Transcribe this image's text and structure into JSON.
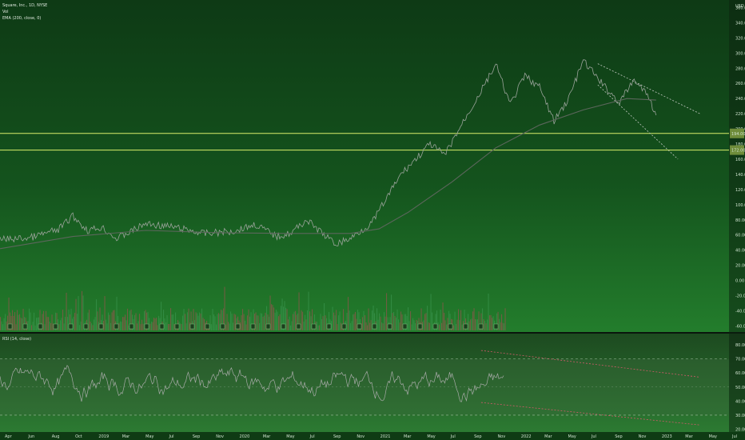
{
  "header": {
    "symbol_line": "Square, Inc., 1D, NYSE",
    "volume_label": "Vol",
    "ema_label": "EMA (200, close, 0)",
    "currency": "USD"
  },
  "rsi_header": "RSI (14, close)",
  "colors": {
    "price_line": "#9aa39a",
    "ema_line": "#5c665c",
    "support_line": "#d9ef6a",
    "trend_line": "#c0c7c0",
    "rsi_trend": "#d05a6a",
    "volume_up": "#3f9a55",
    "volume_down": "#b04a55",
    "panel_top": "#0f3a16",
    "panel_bottom": "#1f7a2a"
  },
  "chart_data": [
    {
      "type": "line",
      "title": "Square, Inc., 1D, NYSE",
      "x_ticks": [
        "Apr",
        "Jun",
        "Aug",
        "Oct",
        "2019",
        "Mar",
        "May",
        "Jul",
        "Sep",
        "Nov",
        "2020",
        "Mar",
        "May",
        "Jul",
        "Sep",
        "Nov",
        "2021",
        "Mar",
        "May",
        "Jul",
        "Sep",
        "Nov",
        "2022",
        "Mar",
        "May",
        "Jul",
        "Sep",
        "Nov",
        "2023",
        "Mar",
        "May",
        "Jul"
      ],
      "y_ticks": [
        -60,
        -40,
        -20,
        0,
        20,
        40,
        60,
        80,
        100,
        120,
        140,
        160,
        180,
        200,
        220,
        240,
        260,
        280,
        300,
        320,
        340,
        360
      ],
      "y_tick_labels": [
        "-60.00",
        "-40.00",
        "-20.00",
        "0.00",
        "20.00",
        "40.00",
        "60.00",
        "80.00",
        "100.00",
        "120.00",
        "140.00",
        "160.00",
        "180.00",
        "200.00",
        "220.00",
        "240.00",
        "260.00",
        "280.00",
        "300.00",
        "320.00",
        "340.00",
        "360.00"
      ],
      "ylim": [
        -68,
        370
      ],
      "price_series": {
        "name": "Price",
        "points": [
          [
            0,
            54
          ],
          [
            4,
            56
          ],
          [
            8,
            67
          ],
          [
            10,
            85
          ],
          [
            12,
            66
          ],
          [
            14,
            70
          ],
          [
            16,
            55
          ],
          [
            20,
            75
          ],
          [
            24,
            70
          ],
          [
            28,
            62
          ],
          [
            32,
            65
          ],
          [
            35,
            74
          ],
          [
            38,
            58
          ],
          [
            40,
            63
          ],
          [
            42,
            80
          ],
          [
            46,
            48
          ],
          [
            48,
            55
          ],
          [
            51,
            76
          ],
          [
            55,
            140
          ],
          [
            59,
            180
          ],
          [
            61,
            165
          ],
          [
            63,
            200
          ],
          [
            66,
            250
          ],
          [
            68,
            285
          ],
          [
            70,
            232
          ],
          [
            72,
            270
          ],
          [
            74,
            255
          ],
          [
            76,
            210
          ],
          [
            78,
            240
          ],
          [
            80,
            290
          ],
          [
            83,
            255
          ],
          [
            85,
            235
          ],
          [
            87,
            265
          ],
          [
            89,
            242
          ],
          [
            90,
            218
          ]
        ]
      },
      "ema_series": {
        "name": "EMA (200, close, 0)",
        "points": [
          [
            0,
            42
          ],
          [
            10,
            58
          ],
          [
            20,
            66
          ],
          [
            30,
            63
          ],
          [
            40,
            62
          ],
          [
            48,
            62
          ],
          [
            52,
            68
          ],
          [
            56,
            90
          ],
          [
            62,
            130
          ],
          [
            68,
            175
          ],
          [
            74,
            205
          ],
          [
            80,
            225
          ],
          [
            86,
            240
          ],
          [
            90,
            238
          ]
        ]
      },
      "horizontal_levels": [
        194,
        172
      ],
      "level_labels": [
        "194.00",
        "172.00"
      ],
      "trend_lines": [
        [
          [
            82,
            286
          ],
          [
            96,
            220
          ]
        ],
        [
          [
            82,
            258
          ],
          [
            93,
            160
          ]
        ]
      ]
    },
    {
      "type": "bar",
      "title": "Vol",
      "volume_ticks": [
        10,
        29,
        48,
        67,
        86,
        105,
        124,
        143,
        162,
        181,
        200,
        219,
        238,
        257,
        276,
        295,
        314,
        333,
        352,
        371,
        390,
        409,
        428,
        447,
        466,
        485,
        504,
        523,
        542,
        561,
        580,
        599,
        618
      ],
      "up_color": "#3f9a55",
      "down_color": "#b04a55"
    },
    {
      "type": "line",
      "title": "RSI (14, close)",
      "y_ticks": [
        20,
        30,
        40,
        50,
        60,
        70,
        80
      ],
      "y_tick_labels": [
        "20.00",
        "30.00",
        "40.00",
        "50.00",
        "60.00",
        "70.00",
        "80.00"
      ],
      "ylim": [
        18,
        88
      ],
      "bands": [
        70,
        30
      ],
      "band_labels": [
        "70.00",
        "30.00"
      ],
      "rsi_trend_lines": [
        [
          [
            66,
            76
          ],
          [
            96,
            57
          ]
        ],
        [
          [
            66,
            39
          ],
          [
            96,
            23
          ]
        ]
      ]
    }
  ]
}
